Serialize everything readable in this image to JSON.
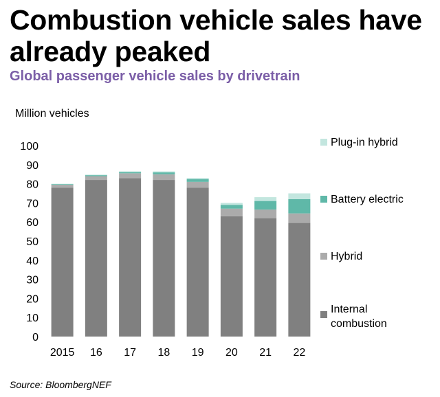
{
  "title": "Combustion vehicle sales have already peaked",
  "subtitle": "Global passenger vehicle sales by drivetrain",
  "source": "Source: BloombergNEF",
  "chart_data": {
    "type": "bar",
    "stacked": true,
    "ylabel": "Million vehicles",
    "ylim": [
      0,
      100
    ],
    "yticks": [
      0,
      10,
      20,
      30,
      40,
      50,
      60,
      70,
      80,
      90,
      100
    ],
    "categories": [
      "2015",
      "16",
      "17",
      "18",
      "19",
      "20",
      "21",
      "22"
    ],
    "series": [
      {
        "name": "Internal combustion",
        "color": "#808080",
        "values": [
          78,
          82,
          83,
          82,
          78,
          63,
          62,
          59.5
        ]
      },
      {
        "name": "Hybrid",
        "color": "#ababab",
        "values": [
          1.5,
          2,
          2.5,
          3,
          3,
          4,
          4.5,
          5
        ]
      },
      {
        "name": "Battery electric",
        "color": "#5fb8a8",
        "values": [
          0.3,
          0.5,
          0.7,
          1,
          1.5,
          2,
          4.5,
          7.5
        ]
      },
      {
        "name": "Plug-in hybrid",
        "color": "#c3e6df",
        "values": [
          0.2,
          0.3,
          0.3,
          0.5,
          0.5,
          1,
          2,
          3
        ]
      }
    ],
    "legend_position": "right"
  }
}
